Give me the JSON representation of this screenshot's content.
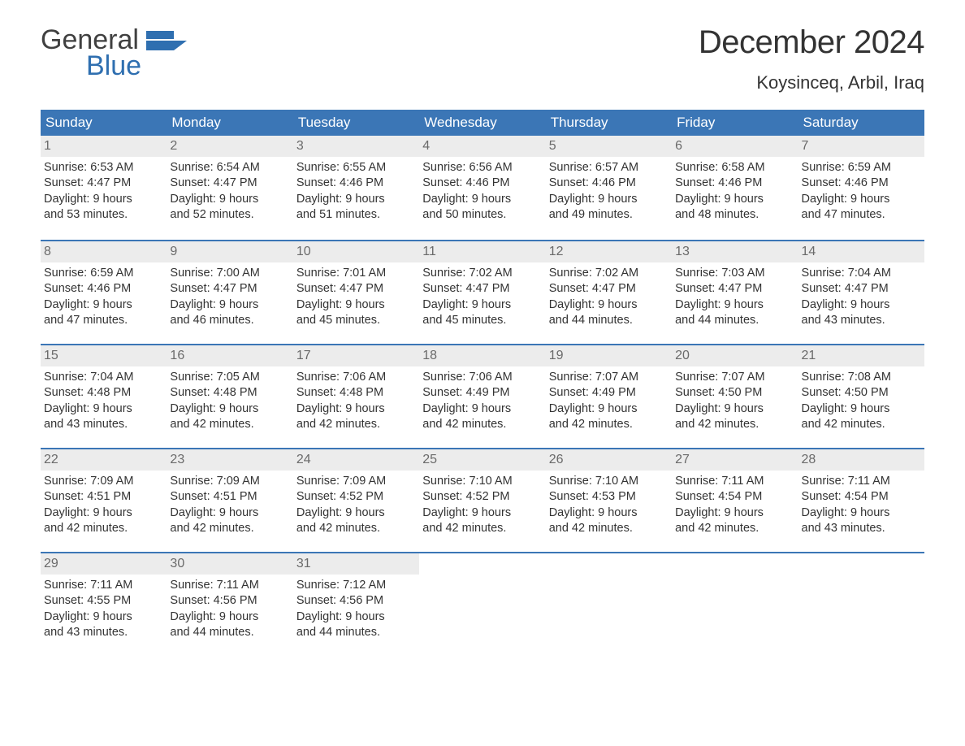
{
  "logo": {
    "word1": "General",
    "word2": "Blue"
  },
  "title": "December 2024",
  "location": "Koysinceq, Arbil, Iraq",
  "colors": {
    "header_bg": "#3b76b6",
    "header_text": "#ffffff",
    "daynum_bg": "#ececec",
    "daynum_text": "#6a6a6a",
    "body_text": "#333333",
    "logo_gray": "#404040",
    "logo_blue": "#2f6fb0",
    "background": "#ffffff"
  },
  "typography": {
    "title_fontsize": 40,
    "location_fontsize": 22,
    "header_fontsize": 17,
    "cell_fontsize": 14.5,
    "logo_fontsize": 34
  },
  "day_names": [
    "Sunday",
    "Monday",
    "Tuesday",
    "Wednesday",
    "Thursday",
    "Friday",
    "Saturday"
  ],
  "weeks": [
    [
      {
        "num": "1",
        "sunrise": "Sunrise: 6:53 AM",
        "sunset": "Sunset: 4:47 PM",
        "d1": "Daylight: 9 hours",
        "d2": "and 53 minutes."
      },
      {
        "num": "2",
        "sunrise": "Sunrise: 6:54 AM",
        "sunset": "Sunset: 4:47 PM",
        "d1": "Daylight: 9 hours",
        "d2": "and 52 minutes."
      },
      {
        "num": "3",
        "sunrise": "Sunrise: 6:55 AM",
        "sunset": "Sunset: 4:46 PM",
        "d1": "Daylight: 9 hours",
        "d2": "and 51 minutes."
      },
      {
        "num": "4",
        "sunrise": "Sunrise: 6:56 AM",
        "sunset": "Sunset: 4:46 PM",
        "d1": "Daylight: 9 hours",
        "d2": "and 50 minutes."
      },
      {
        "num": "5",
        "sunrise": "Sunrise: 6:57 AM",
        "sunset": "Sunset: 4:46 PM",
        "d1": "Daylight: 9 hours",
        "d2": "and 49 minutes."
      },
      {
        "num": "6",
        "sunrise": "Sunrise: 6:58 AM",
        "sunset": "Sunset: 4:46 PM",
        "d1": "Daylight: 9 hours",
        "d2": "and 48 minutes."
      },
      {
        "num": "7",
        "sunrise": "Sunrise: 6:59 AM",
        "sunset": "Sunset: 4:46 PM",
        "d1": "Daylight: 9 hours",
        "d2": "and 47 minutes."
      }
    ],
    [
      {
        "num": "8",
        "sunrise": "Sunrise: 6:59 AM",
        "sunset": "Sunset: 4:46 PM",
        "d1": "Daylight: 9 hours",
        "d2": "and 47 minutes."
      },
      {
        "num": "9",
        "sunrise": "Sunrise: 7:00 AM",
        "sunset": "Sunset: 4:47 PM",
        "d1": "Daylight: 9 hours",
        "d2": "and 46 minutes."
      },
      {
        "num": "10",
        "sunrise": "Sunrise: 7:01 AM",
        "sunset": "Sunset: 4:47 PM",
        "d1": "Daylight: 9 hours",
        "d2": "and 45 minutes."
      },
      {
        "num": "11",
        "sunrise": "Sunrise: 7:02 AM",
        "sunset": "Sunset: 4:47 PM",
        "d1": "Daylight: 9 hours",
        "d2": "and 45 minutes."
      },
      {
        "num": "12",
        "sunrise": "Sunrise: 7:02 AM",
        "sunset": "Sunset: 4:47 PM",
        "d1": "Daylight: 9 hours",
        "d2": "and 44 minutes."
      },
      {
        "num": "13",
        "sunrise": "Sunrise: 7:03 AM",
        "sunset": "Sunset: 4:47 PM",
        "d1": "Daylight: 9 hours",
        "d2": "and 44 minutes."
      },
      {
        "num": "14",
        "sunrise": "Sunrise: 7:04 AM",
        "sunset": "Sunset: 4:47 PM",
        "d1": "Daylight: 9 hours",
        "d2": "and 43 minutes."
      }
    ],
    [
      {
        "num": "15",
        "sunrise": "Sunrise: 7:04 AM",
        "sunset": "Sunset: 4:48 PM",
        "d1": "Daylight: 9 hours",
        "d2": "and 43 minutes."
      },
      {
        "num": "16",
        "sunrise": "Sunrise: 7:05 AM",
        "sunset": "Sunset: 4:48 PM",
        "d1": "Daylight: 9 hours",
        "d2": "and 42 minutes."
      },
      {
        "num": "17",
        "sunrise": "Sunrise: 7:06 AM",
        "sunset": "Sunset: 4:48 PM",
        "d1": "Daylight: 9 hours",
        "d2": "and 42 minutes."
      },
      {
        "num": "18",
        "sunrise": "Sunrise: 7:06 AM",
        "sunset": "Sunset: 4:49 PM",
        "d1": "Daylight: 9 hours",
        "d2": "and 42 minutes."
      },
      {
        "num": "19",
        "sunrise": "Sunrise: 7:07 AM",
        "sunset": "Sunset: 4:49 PM",
        "d1": "Daylight: 9 hours",
        "d2": "and 42 minutes."
      },
      {
        "num": "20",
        "sunrise": "Sunrise: 7:07 AM",
        "sunset": "Sunset: 4:50 PM",
        "d1": "Daylight: 9 hours",
        "d2": "and 42 minutes."
      },
      {
        "num": "21",
        "sunrise": "Sunrise: 7:08 AM",
        "sunset": "Sunset: 4:50 PM",
        "d1": "Daylight: 9 hours",
        "d2": "and 42 minutes."
      }
    ],
    [
      {
        "num": "22",
        "sunrise": "Sunrise: 7:09 AM",
        "sunset": "Sunset: 4:51 PM",
        "d1": "Daylight: 9 hours",
        "d2": "and 42 minutes."
      },
      {
        "num": "23",
        "sunrise": "Sunrise: 7:09 AM",
        "sunset": "Sunset: 4:51 PM",
        "d1": "Daylight: 9 hours",
        "d2": "and 42 minutes."
      },
      {
        "num": "24",
        "sunrise": "Sunrise: 7:09 AM",
        "sunset": "Sunset: 4:52 PM",
        "d1": "Daylight: 9 hours",
        "d2": "and 42 minutes."
      },
      {
        "num": "25",
        "sunrise": "Sunrise: 7:10 AM",
        "sunset": "Sunset: 4:52 PM",
        "d1": "Daylight: 9 hours",
        "d2": "and 42 minutes."
      },
      {
        "num": "26",
        "sunrise": "Sunrise: 7:10 AM",
        "sunset": "Sunset: 4:53 PM",
        "d1": "Daylight: 9 hours",
        "d2": "and 42 minutes."
      },
      {
        "num": "27",
        "sunrise": "Sunrise: 7:11 AM",
        "sunset": "Sunset: 4:54 PM",
        "d1": "Daylight: 9 hours",
        "d2": "and 42 minutes."
      },
      {
        "num": "28",
        "sunrise": "Sunrise: 7:11 AM",
        "sunset": "Sunset: 4:54 PM",
        "d1": "Daylight: 9 hours",
        "d2": "and 43 minutes."
      }
    ],
    [
      {
        "num": "29",
        "sunrise": "Sunrise: 7:11 AM",
        "sunset": "Sunset: 4:55 PM",
        "d1": "Daylight: 9 hours",
        "d2": "and 43 minutes."
      },
      {
        "num": "30",
        "sunrise": "Sunrise: 7:11 AM",
        "sunset": "Sunset: 4:56 PM",
        "d1": "Daylight: 9 hours",
        "d2": "and 44 minutes."
      },
      {
        "num": "31",
        "sunrise": "Sunrise: 7:12 AM",
        "sunset": "Sunset: 4:56 PM",
        "d1": "Daylight: 9 hours",
        "d2": "and 44 minutes."
      },
      null,
      null,
      null,
      null
    ]
  ]
}
